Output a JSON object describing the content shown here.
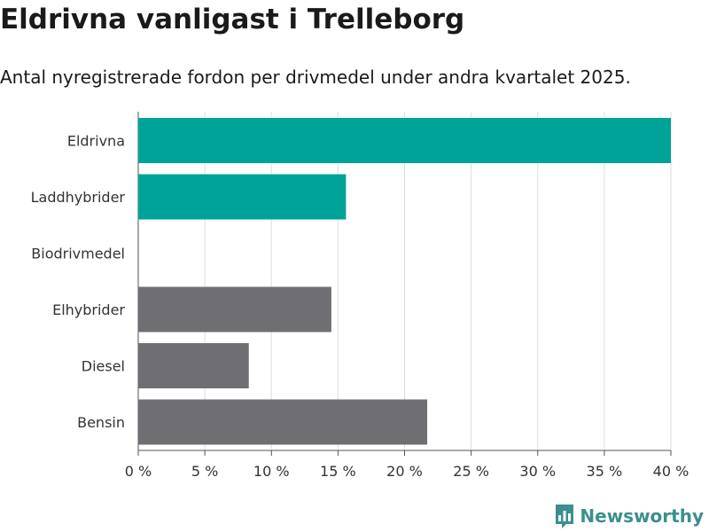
{
  "title": "Eldrivna vanligast i Trelleborg",
  "subtitle": "Antal nyregistrerade fordon per drivmedel under andra kvartalet 2025.",
  "brand": "Newsworthy",
  "colors": {
    "highlight": "#00a398",
    "neutral": "#6f6e73",
    "grid": "#dddddd",
    "brand": "#3b8f8c"
  },
  "chart_data": {
    "type": "bar",
    "orientation": "horizontal",
    "categories": [
      "Eldrivna",
      "Laddhybrider",
      "Biodrivmedel",
      "Elhybrider",
      "Diesel",
      "Bensin"
    ],
    "values": [
      40.0,
      15.6,
      0.0,
      14.5,
      8.3,
      21.7
    ],
    "highlight": [
      true,
      true,
      false,
      false,
      false,
      false
    ],
    "xticks": [
      "0 %",
      "5 %",
      "10 %",
      "15 %",
      "20 %",
      "25 %",
      "30 %",
      "35 %",
      "40 %"
    ],
    "xlim": [
      0,
      40
    ],
    "grid": true,
    "title": "Eldrivna vanligast i Trelleborg",
    "subtitle": "Antal nyregistrerade fordon per drivmedel under andra kvartalet 2025."
  }
}
